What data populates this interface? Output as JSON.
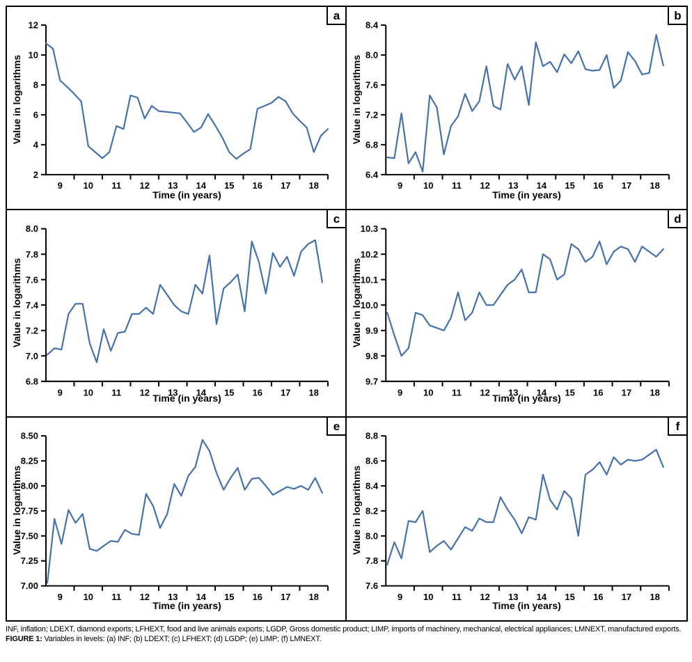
{
  "figure": {
    "caption_abbreviations": "INF, inflation; LDEXT, diamond exports; LFHEXT, food and live animals exports; LGDP, Gross domestic product; LIMP, imports of machinery, mechanical, electrical appliances; LMNEXT, manufactured exports.",
    "caption_label": "FIGURE 1:",
    "caption_text": "Variables in levels: (a) INF; (b) LDEXT; (c) LFHEXT; (d) LGDP; (e) LIMP; (f) LMNEXT."
  },
  "style": {
    "line_color": "#4571ad",
    "axis_color": "#000000",
    "background": "#ffffff"
  },
  "chart_data": [
    {
      "type": "line",
      "panel": "a",
      "series_name": "INF",
      "xlabel": "Time (in years)",
      "ylabel": "Value in logarithms",
      "xlim": [
        8.5,
        18.5
      ],
      "ylim": [
        2,
        12
      ],
      "x_start": 8.5,
      "x_step": 0.25,
      "x_tick_labels": [
        "9",
        "10",
        "11",
        "12",
        "13",
        "14",
        "15",
        "16",
        "17",
        "18"
      ],
      "x_tick_label_positions": [
        9,
        10,
        11,
        12,
        13,
        14,
        15,
        16,
        17,
        18
      ],
      "x_tick_mark_positions": [
        9.5,
        10.5,
        11.5,
        12.5,
        13.5,
        14.5,
        15.5,
        16.5,
        17.5,
        18.5
      ],
      "y_tick_values": [
        2,
        4,
        6,
        8,
        10,
        12
      ],
      "y_tick_labels": [
        "2",
        "4",
        "6",
        "8",
        "10",
        "12"
      ],
      "grid": "off",
      "legend": "none",
      "values": [
        10.78,
        10.42,
        8.3,
        7.87,
        7.4,
        6.9,
        3.9,
        3.5,
        3.1,
        3.5,
        5.25,
        5.05,
        7.3,
        7.15,
        5.75,
        6.6,
        6.25,
        6.2,
        6.15,
        6.1,
        5.5,
        4.85,
        5.15,
        6.05,
        5.3,
        4.5,
        3.5,
        3.05,
        3.4,
        3.7,
        6.4,
        6.6,
        6.8,
        7.2,
        6.9,
        6.1,
        5.6,
        5.15,
        3.5,
        4.6,
        5.05
      ]
    },
    {
      "type": "line",
      "panel": "b",
      "series_name": "LDEXT",
      "xlabel": "Time (in years)",
      "ylabel": "Value in logarithms",
      "xlim": [
        8.5,
        18.5
      ],
      "ylim": [
        6.4,
        8.4
      ],
      "x_start": 8.55,
      "x_step": 0.25,
      "x_tick_labels": [
        "9",
        "10",
        "11",
        "12",
        "13",
        "14",
        "15",
        "16",
        "17",
        "18"
      ],
      "x_tick_label_positions": [
        9,
        10,
        11,
        12,
        13,
        14,
        15,
        16,
        17,
        18
      ],
      "x_tick_mark_positions": [
        9.5,
        10.5,
        11.5,
        12.5,
        13.5,
        14.5,
        15.5,
        16.5,
        17.5,
        18.5
      ],
      "y_tick_values": [
        6.4,
        6.8,
        7.2,
        7.6,
        8.0,
        8.4
      ],
      "y_tick_labels": [
        "6.4",
        "6.8",
        "7.2",
        "7.6",
        "8.0",
        "8.4"
      ],
      "grid": "off",
      "legend": "none",
      "values": [
        6.63,
        6.62,
        7.22,
        6.55,
        6.7,
        6.44,
        7.46,
        7.3,
        6.67,
        7.05,
        7.18,
        7.48,
        7.25,
        7.38,
        7.85,
        7.32,
        7.27,
        7.88,
        7.67,
        7.85,
        7.33,
        8.17,
        7.85,
        7.91,
        7.77,
        8.01,
        7.89,
        8.05,
        7.81,
        7.79,
        7.8,
        8.0,
        7.56,
        7.66,
        8.04,
        7.92,
        7.74,
        7.76,
        8.27,
        7.86
      ]
    },
    {
      "type": "line",
      "panel": "c",
      "series_name": "LFHEXT",
      "xlabel": "Time (in years)",
      "ylabel": "Value in logarithms",
      "xlim": [
        8.5,
        18.5
      ],
      "ylim": [
        6.8,
        8.0
      ],
      "x_start": 8.55,
      "x_step": 0.25,
      "x_tick_labels": [
        "9",
        "10",
        "11",
        "12",
        "13",
        "14",
        "15",
        "16",
        "17",
        "18"
      ],
      "x_tick_label_positions": [
        9,
        10,
        11,
        12,
        13,
        14,
        15,
        16,
        17,
        18
      ],
      "x_tick_mark_positions": [
        9.5,
        10.5,
        11.5,
        12.5,
        13.5,
        14.5,
        15.5,
        16.5,
        17.5,
        18.5
      ],
      "y_tick_values": [
        6.8,
        7.0,
        7.2,
        7.4,
        7.6,
        7.8,
        8.0
      ],
      "y_tick_labels": [
        "6.8",
        "7.0",
        "7.2",
        "7.4",
        "7.6",
        "7.8",
        "8.0"
      ],
      "grid": "off",
      "legend": "none",
      "values": [
        7.01,
        7.06,
        7.05,
        7.33,
        7.41,
        7.41,
        7.1,
        6.95,
        7.21,
        7.04,
        7.18,
        7.19,
        7.33,
        7.33,
        7.38,
        7.33,
        7.56,
        7.48,
        7.4,
        7.35,
        7.33,
        7.56,
        7.49,
        7.79,
        7.25,
        7.53,
        7.58,
        7.64,
        7.35,
        7.9,
        7.74,
        7.49,
        7.81,
        7.7,
        7.78,
        7.63,
        7.82,
        7.88,
        7.91,
        7.58
      ]
    },
    {
      "type": "line",
      "panel": "d",
      "series_name": "LGDP",
      "xlabel": "Time (in years)",
      "ylabel": "Value in logarithms",
      "xlim": [
        8.5,
        18.5
      ],
      "ylim": [
        9.7,
        10.3
      ],
      "x_start": 8.55,
      "x_step": 0.25,
      "x_tick_labels": [
        "9",
        "10",
        "11",
        "12",
        "13",
        "14",
        "15",
        "16",
        "17",
        "18"
      ],
      "x_tick_label_positions": [
        9,
        10,
        11,
        12,
        13,
        14,
        15,
        16,
        17,
        18
      ],
      "x_tick_mark_positions": [
        9.5,
        10.5,
        11.5,
        12.5,
        13.5,
        14.5,
        15.5,
        16.5,
        17.5,
        18.5
      ],
      "y_tick_values": [
        9.7,
        9.8,
        9.9,
        10.0,
        10.1,
        10.2,
        10.3
      ],
      "y_tick_labels": [
        "9.7",
        "9.8",
        "9.9",
        "10.0",
        "10.1",
        "10.2",
        "10.3"
      ],
      "grid": "off",
      "legend": "none",
      "values": [
        9.97,
        9.88,
        9.8,
        9.83,
        9.97,
        9.96,
        9.92,
        9.91,
        9.9,
        9.95,
        10.05,
        9.94,
        9.97,
        10.05,
        10.0,
        10.0,
        10.04,
        10.08,
        10.1,
        10.14,
        10.05,
        10.05,
        10.2,
        10.18,
        10.1,
        10.12,
        10.24,
        10.22,
        10.17,
        10.19,
        10.25,
        10.16,
        10.21,
        10.23,
        10.22,
        10.17,
        10.23,
        10.21,
        10.19,
        10.22
      ]
    },
    {
      "type": "line",
      "panel": "e",
      "series_name": "LIMP",
      "xlabel": "Time (in years)",
      "ylabel": "Value in logarithms",
      "xlim": [
        8.5,
        18.5
      ],
      "ylim": [
        7.0,
        8.5
      ],
      "x_start": 8.55,
      "x_step": 0.25,
      "x_tick_labels": [
        "9",
        "10",
        "11",
        "12",
        "13",
        "14",
        "15",
        "16",
        "17",
        "18"
      ],
      "x_tick_label_positions": [
        9,
        10,
        11,
        12,
        13,
        14,
        15,
        16,
        17,
        18
      ],
      "x_tick_mark_positions": [
        9.5,
        10.5,
        11.5,
        12.5,
        13.5,
        14.5,
        15.5,
        16.5,
        17.5,
        18.5
      ],
      "y_tick_values": [
        7.0,
        7.25,
        7.5,
        7.75,
        8.0,
        8.25,
        8.5
      ],
      "y_tick_labels": [
        "7.00",
        "7.25",
        "7.50",
        "7.75",
        "8.00",
        "8.25",
        "8.50"
      ],
      "grid": "off",
      "legend": "none",
      "values": [
        7.03,
        7.67,
        7.42,
        7.76,
        7.63,
        7.72,
        7.37,
        7.35,
        7.4,
        7.45,
        7.44,
        7.56,
        7.52,
        7.51,
        7.92,
        7.8,
        7.58,
        7.72,
        8.02,
        7.9,
        8.1,
        8.19,
        8.46,
        8.35,
        8.13,
        7.96,
        8.08,
        8.18,
        7.96,
        8.07,
        8.08,
        8.0,
        7.91,
        7.95,
        7.99,
        7.97,
        8.0,
        7.96,
        8.08,
        7.93
      ]
    },
    {
      "type": "line",
      "panel": "f",
      "series_name": "LMNEXT",
      "xlabel": "Time (in years)",
      "ylabel": "Value in logarithms",
      "xlim": [
        8.5,
        18.5
      ],
      "ylim": [
        7.6,
        8.8
      ],
      "x_start": 8.55,
      "x_step": 0.25,
      "x_tick_labels": [
        "9",
        "10",
        "11",
        "12",
        "13",
        "14",
        "15",
        "16",
        "17",
        "18"
      ],
      "x_tick_label_positions": [
        9,
        10,
        11,
        12,
        13,
        14,
        15,
        16,
        17,
        18
      ],
      "x_tick_mark_positions": [
        9.5,
        10.5,
        11.5,
        12.5,
        13.5,
        14.5,
        15.5,
        16.5,
        17.5,
        18.5
      ],
      "y_tick_values": [
        7.6,
        7.8,
        8.0,
        8.2,
        8.4,
        8.6,
        8.8
      ],
      "y_tick_labels": [
        "7.6",
        "7.8",
        "8.0",
        "8.2",
        "8.4",
        "8.6",
        "8.8"
      ],
      "grid": "off",
      "legend": "none",
      "values": [
        7.77,
        7.95,
        7.82,
        8.12,
        8.11,
        8.2,
        7.87,
        7.92,
        7.96,
        7.89,
        7.98,
        8.07,
        8.04,
        8.14,
        8.11,
        8.11,
        8.31,
        8.21,
        8.13,
        8.02,
        8.15,
        8.13,
        8.49,
        8.29,
        8.21,
        8.36,
        8.3,
        8.0,
        8.49,
        8.53,
        8.59,
        8.49,
        8.63,
        8.57,
        8.61,
        8.6,
        8.61,
        8.65,
        8.69,
        8.55
      ]
    }
  ]
}
